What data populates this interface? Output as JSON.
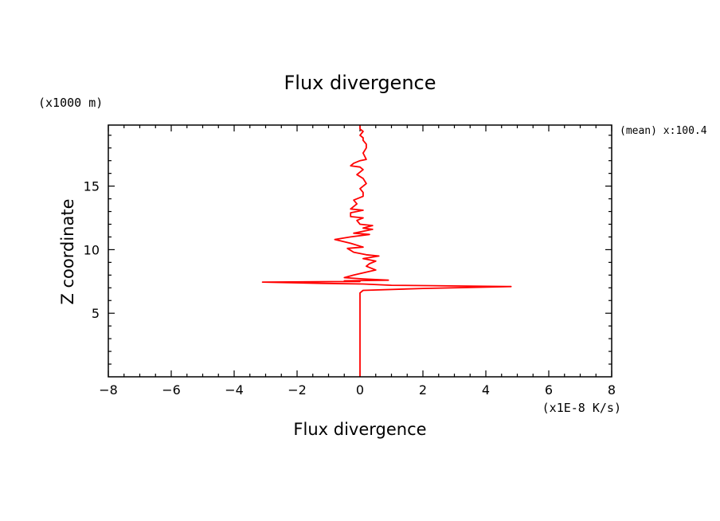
{
  "chart_data": {
    "type": "line",
    "title": "Flux divergence",
    "xlabel": "Flux divergence",
    "ylabel": "Z coordinate",
    "x_unit": "(x1E-8 K/s)",
    "y_unit": "(x1000 m)",
    "annotation": "(mean) x:100.4",
    "xlim": [
      -8,
      8
    ],
    "ylim": [
      0,
      19.8
    ],
    "x_ticks": [
      -8,
      -6,
      -4,
      -2,
      0,
      2,
      4,
      6,
      8
    ],
    "x_tick_labels": [
      "−8",
      "−6",
      "−4",
      "−2",
      "0",
      "2",
      "4",
      "6",
      "8"
    ],
    "y_ticks": [
      5,
      10,
      15
    ],
    "y_tick_labels": [
      "5",
      "10",
      "15"
    ],
    "grid": false,
    "series": [
      {
        "color": "#ff0000",
        "points": [
          [
            0,
            0
          ],
          [
            0,
            6.6
          ],
          [
            0.1,
            6.8
          ],
          [
            2.0,
            6.95
          ],
          [
            4.8,
            7.1
          ],
          [
            1.0,
            7.2
          ],
          [
            0.1,
            7.3
          ],
          [
            -1.2,
            7.35
          ],
          [
            -3.1,
            7.45
          ],
          [
            0.0,
            7.5
          ],
          [
            -0.5,
            7.55
          ],
          [
            0.9,
            7.6
          ],
          [
            0.1,
            7.7
          ],
          [
            -0.5,
            7.8
          ],
          [
            -0.2,
            8.0
          ],
          [
            0.5,
            8.4
          ],
          [
            0.2,
            8.7
          ],
          [
            0.3,
            8.9
          ],
          [
            0.5,
            9.1
          ],
          [
            0.1,
            9.3
          ],
          [
            0.6,
            9.5
          ],
          [
            0.2,
            9.6
          ],
          [
            -0.2,
            9.8
          ],
          [
            -0.4,
            10.1
          ],
          [
            0.1,
            10.2
          ],
          [
            -0.3,
            10.5
          ],
          [
            -0.8,
            10.8
          ],
          [
            -0.3,
            11.0
          ],
          [
            0.3,
            11.2
          ],
          [
            -0.2,
            11.3
          ],
          [
            0.4,
            11.6
          ],
          [
            0.1,
            11.7
          ],
          [
            0.4,
            11.9
          ],
          [
            0.0,
            12.0
          ],
          [
            -0.1,
            12.3
          ],
          [
            0.1,
            12.5
          ],
          [
            -0.3,
            12.6
          ],
          [
            -0.3,
            12.9
          ],
          [
            0.1,
            13.1
          ],
          [
            -0.3,
            13.2
          ],
          [
            -0.1,
            13.6
          ],
          [
            -0.2,
            13.9
          ],
          [
            0.1,
            14.2
          ],
          [
            0.1,
            14.5
          ],
          [
            0.0,
            14.8
          ],
          [
            0.2,
            15.2
          ],
          [
            0.1,
            15.6
          ],
          [
            -0.1,
            15.9
          ],
          [
            0.1,
            16.3
          ],
          [
            0.0,
            16.5
          ],
          [
            -0.3,
            16.6
          ],
          [
            -0.2,
            16.8
          ],
          [
            0.0,
            17.0
          ],
          [
            0.2,
            17.1
          ],
          [
            0.1,
            17.6
          ],
          [
            0.2,
            18.0
          ],
          [
            0.2,
            18.3
          ],
          [
            0.1,
            18.6
          ],
          [
            0.1,
            18.8
          ],
          [
            0.0,
            19.0
          ],
          [
            0.1,
            19.3
          ],
          [
            0.0,
            19.5
          ],
          [
            0.0,
            19.8
          ]
        ]
      }
    ]
  }
}
